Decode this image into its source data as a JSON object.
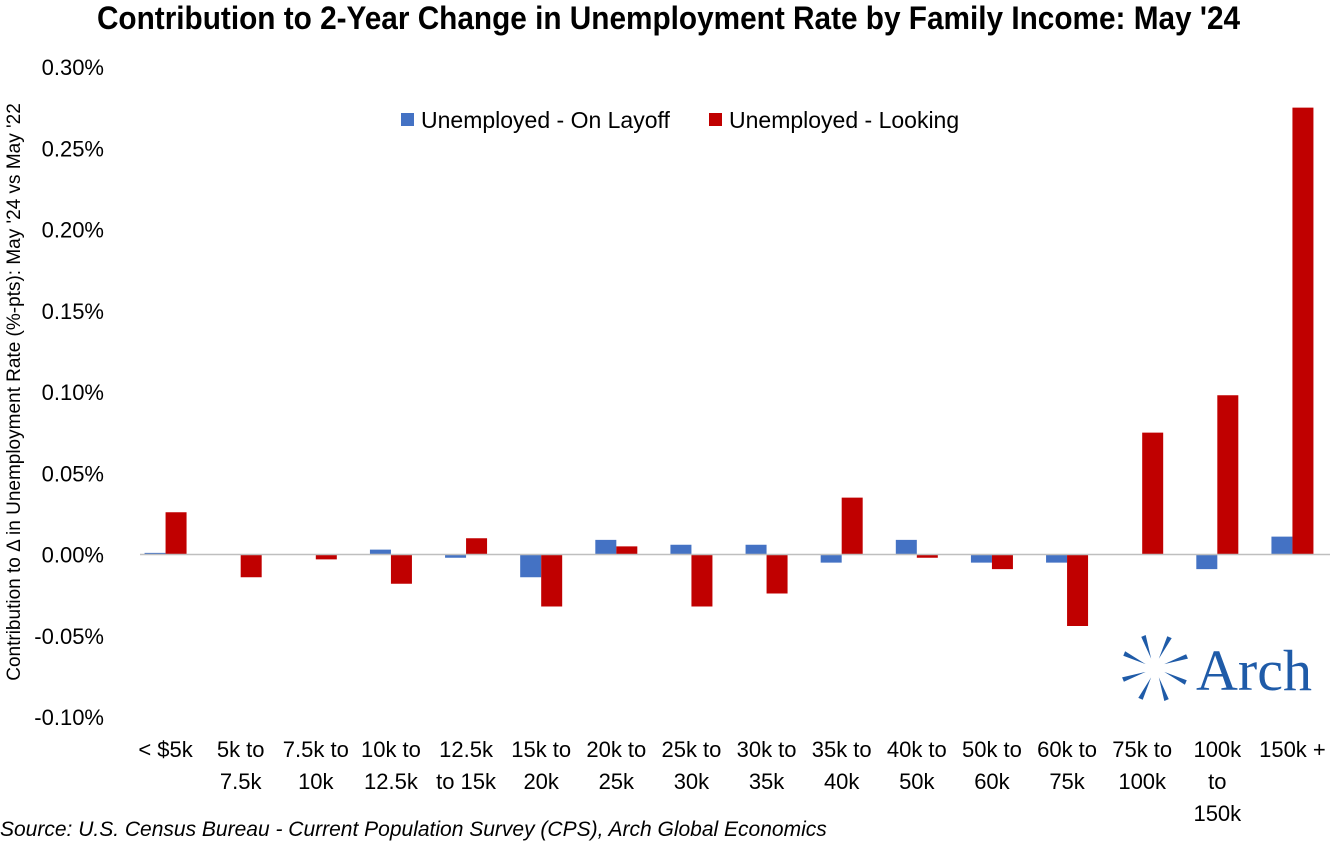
{
  "chart_data": {
    "type": "bar",
    "title": "Contribution to 2-Year Change in Unemployment Rate by Family Income: May '24",
    "ylabel": "Contribution to Δ in Unemployment Rate (%-pts): May '24 vs May '22",
    "xlabel": "",
    "ylim": [
      -0.1,
      0.3
    ],
    "yticks": [
      "0.30%",
      "0.25%",
      "0.20%",
      "0.15%",
      "0.10%",
      "0.05%",
      "0.00%",
      "-0.05%",
      "-0.10%"
    ],
    "ytick_values": [
      0.3,
      0.25,
      0.2,
      0.15,
      0.1,
      0.05,
      0.0,
      -0.05,
      -0.1
    ],
    "grid": false,
    "legend_position": "top-center",
    "categories": [
      [
        "< $5k"
      ],
      [
        "5k to",
        "7.5k"
      ],
      [
        "7.5k to",
        "10k"
      ],
      [
        "10k to",
        "12.5k"
      ],
      [
        "12.5k",
        "to 15k"
      ],
      [
        "15k to",
        "20k"
      ],
      [
        "20k to",
        "25k"
      ],
      [
        "25k to",
        "30k"
      ],
      [
        "30k to",
        "35k"
      ],
      [
        "35k to",
        "40k"
      ],
      [
        "40k to",
        "50k"
      ],
      [
        "50k to",
        "60k"
      ],
      [
        "60k to",
        "75k"
      ],
      [
        "75k to",
        "100k"
      ],
      [
        "100k",
        "to",
        "150k"
      ],
      [
        "150k +"
      ]
    ],
    "series": [
      {
        "name": "Unemployed - On Layoff",
        "color": "#4472C4",
        "values": [
          0.001,
          0.0,
          0.0,
          0.003,
          -0.002,
          -0.014,
          0.009,
          0.006,
          0.006,
          -0.005,
          0.009,
          -0.005,
          -0.005,
          0.0,
          -0.009,
          0.011
        ]
      },
      {
        "name": "Unemployed - Looking",
        "color": "#C00000",
        "values": [
          0.026,
          -0.014,
          -0.003,
          -0.018,
          0.01,
          -0.032,
          0.005,
          -0.032,
          -0.024,
          0.035,
          -0.002,
          -0.009,
          -0.044,
          0.075,
          0.098,
          0.275
        ]
      }
    ]
  },
  "source": "Source: U.S. Census Bureau - Current Population Survey (CPS), Arch Global Economics",
  "logo": {
    "text": "Arch",
    "color": "#1F5BA8"
  }
}
